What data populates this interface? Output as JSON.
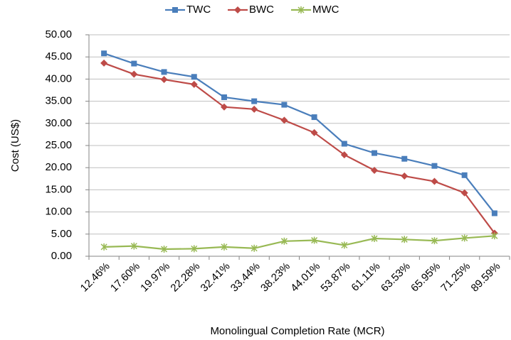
{
  "chart_data": {
    "type": "line",
    "x_label": "Monolingual Completion Rate (MCR)",
    "y_label": "Cost (US$)",
    "categories": [
      "12.46%",
      "17.60%",
      "19.97%",
      "22.28%",
      "32.41%",
      "33.44%",
      "38.23%",
      "44.01%",
      "53.87%",
      "61.11%",
      "63.53%",
      "65.95%",
      "71.25%",
      "89.59%"
    ],
    "series": [
      {
        "name": "TWC",
        "color": "#4a7ebb",
        "marker": "square",
        "values": [
          45.8,
          43.5,
          41.6,
          40.5,
          35.9,
          35.0,
          34.2,
          31.4,
          25.4,
          23.3,
          22.0,
          20.4,
          18.3,
          9.7
        ]
      },
      {
        "name": "BWC",
        "color": "#be4b48",
        "marker": "diamond",
        "values": [
          43.6,
          41.1,
          39.9,
          38.8,
          33.7,
          33.2,
          30.7,
          27.9,
          22.9,
          19.4,
          18.1,
          16.9,
          14.3,
          5.2
        ]
      },
      {
        "name": "MWC",
        "color": "#98b954",
        "marker": "star",
        "values": [
          2.1,
          2.3,
          1.6,
          1.7,
          2.1,
          1.8,
          3.4,
          3.6,
          2.5,
          4.0,
          3.8,
          3.5,
          4.1,
          4.6
        ]
      }
    ],
    "ylim": [
      0,
      50
    ],
    "yticks": [
      {
        "value": 0,
        "label": "0.00"
      },
      {
        "value": 5,
        "label": "5.00"
      },
      {
        "value": 10,
        "label": "10.00"
      },
      {
        "value": 15,
        "label": "15.00"
      },
      {
        "value": 20,
        "label": "20.00"
      },
      {
        "value": 25,
        "label": "25.00"
      },
      {
        "value": 30,
        "label": "30.00"
      },
      {
        "value": 35,
        "label": "35.00"
      },
      {
        "value": 40,
        "label": "40.00"
      },
      {
        "value": 45,
        "label": "45.00"
      },
      {
        "value": 50,
        "label": "50.00"
      }
    ],
    "grid": true,
    "legend": "top"
  }
}
